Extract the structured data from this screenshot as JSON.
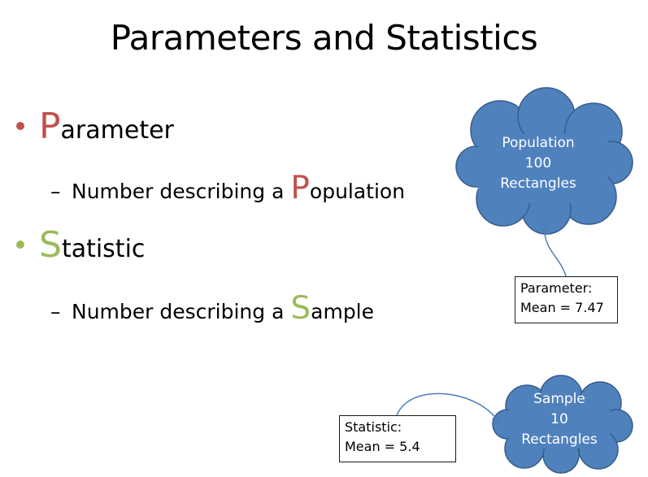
{
  "slide": {
    "title": "Parameters and Statistics",
    "bullets": [
      {
        "initial": "P",
        "rest": "arameter",
        "color": "#C0504D",
        "sub": {
          "prefix": "Number describing a ",
          "initial": "P",
          "rest": "opulation"
        }
      },
      {
        "initial": "S",
        "rest": "tatistic",
        "color": "#9BBB59",
        "sub": {
          "prefix": "Number describing a ",
          "initial": "S",
          "rest": "ample"
        }
      }
    ],
    "dash": "–"
  },
  "population_cloud": {
    "line1": "Population",
    "line2": "100",
    "line3": "Rectangles",
    "fill": "#4F81BD",
    "stroke": "#385D8A"
  },
  "sample_cloud": {
    "line1": "Sample",
    "line2": "10",
    "line3": "Rectangles",
    "fill": "#4F81BD",
    "stroke": "#385D8A"
  },
  "parameter_box": {
    "line1": "Parameter:",
    "line2": "Mean = 7.47"
  },
  "statistic_box": {
    "line1": "Statistic:",
    "line2": "Mean = 5.4"
  },
  "arrow_color": "#4A7EBB"
}
